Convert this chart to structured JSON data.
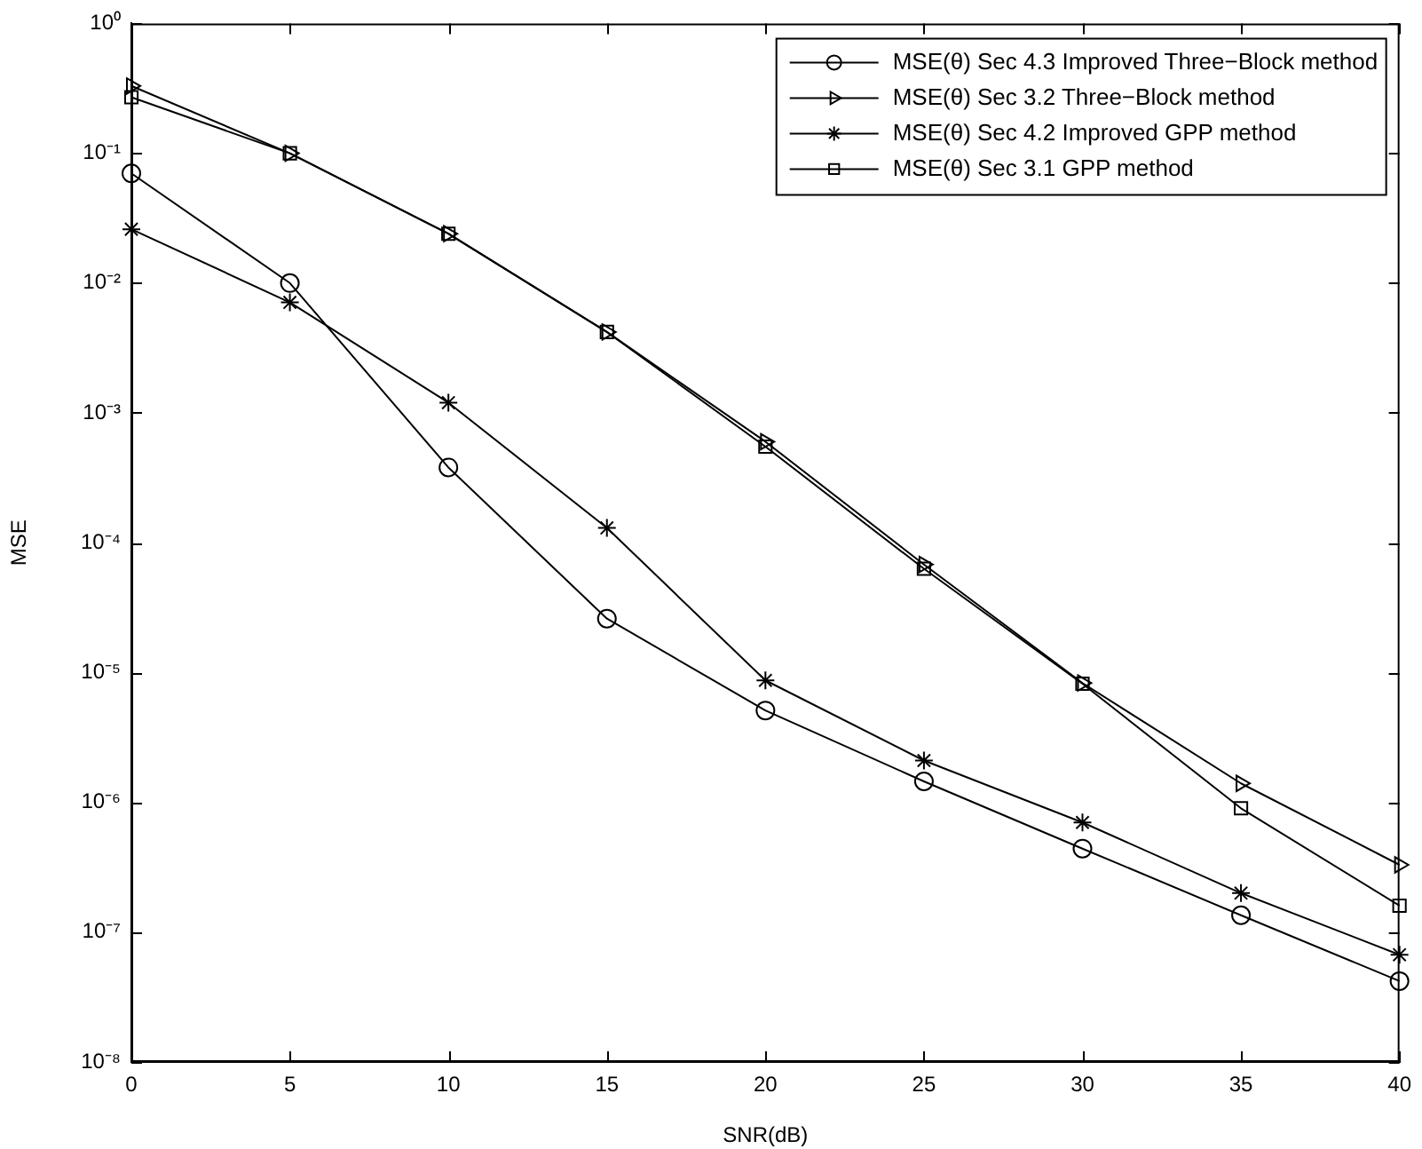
{
  "chart_data": {
    "type": "line",
    "xlabel": "SNR(dB)",
    "ylabel": "MSE",
    "log": "y",
    "xlim": [
      0,
      40
    ],
    "xticks": [
      0,
      5,
      10,
      15,
      20,
      25,
      30,
      35,
      40
    ],
    "ylim": [
      1e-08,
      1
    ],
    "yticks": [
      {
        "value": 1e-08,
        "label": "10⁻⁸"
      },
      {
        "value": 1e-07,
        "label": "10⁻⁷"
      },
      {
        "value": 1e-06,
        "label": "10⁻⁶"
      },
      {
        "value": 1e-05,
        "label": "10⁻⁵"
      },
      {
        "value": 0.0001,
        "label": "10⁻⁴"
      },
      {
        "value": 0.001,
        "label": "10⁻³"
      },
      {
        "value": 0.01,
        "label": "10⁻²"
      },
      {
        "value": 0.1,
        "label": "10⁻¹"
      },
      {
        "value": 1,
        "label": "10⁰"
      }
    ],
    "x": [
      0,
      5,
      10,
      15,
      20,
      25,
      30,
      35,
      40
    ],
    "grid": false,
    "legend": "top right",
    "line_style": "solid",
    "series": [
      {
        "name": "MSE(θ) Sec 4.3 Improved Three−Block method",
        "color": "#000000",
        "marker": "circle",
        "values": [
          0.07,
          0.01,
          0.00038,
          2.6e-05,
          5.1e-06,
          1.45e-06,
          4.4e-07,
          1.35e-07,
          4.2e-08
        ]
      },
      {
        "name": "MSE(θ) Sec 3.2 Three−Block method",
        "color": "#000000",
        "marker": "triangle",
        "values": [
          0.33,
          0.1,
          0.024,
          0.0042,
          0.0006,
          6.8e-05,
          8.3e-06,
          1.4e-06,
          3.3e-07
        ]
      },
      {
        "name": "MSE(θ) Sec 4.2 Improved GPP method",
        "color": "#000000",
        "marker": "cross",
        "values": [
          0.026,
          0.0071,
          0.0012,
          0.00013,
          8.7e-06,
          2.1e-06,
          7e-07,
          2e-07,
          6.7e-08
        ]
      },
      {
        "name": "MSE(θ) Sec 3.1 GPP method",
        "color": "#000000",
        "marker": "square",
        "values": [
          0.27,
          0.1,
          0.024,
          0.0042,
          0.00055,
          6.3e-05,
          8.2e-06,
          9e-07,
          1.6e-07
        ]
      }
    ]
  }
}
